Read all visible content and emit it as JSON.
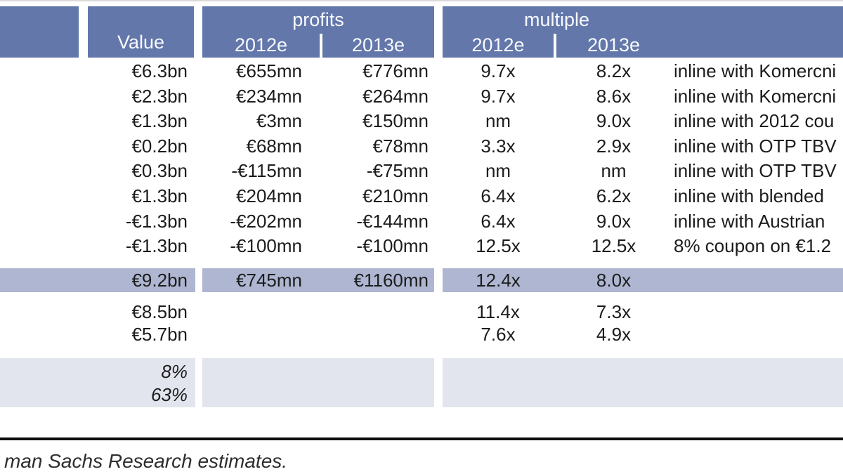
{
  "colors": {
    "header_blue": "#6377AB",
    "highlight_row_blue": "#AEB6D1",
    "shaded_section_gray": "#E2E5ED",
    "header_text": "#F7F9FC",
    "body_text": "#1C1C1C"
  },
  "header": {
    "group_profits": "profits",
    "group_multiple": "multiple",
    "value": "Value",
    "profits_2012": "2012e",
    "profits_2013": "2013e",
    "multiple_2012": "2012e",
    "multiple_2013": "2013e"
  },
  "table": {
    "rows": [
      {
        "value": "€6.3bn",
        "profits_2012": "€655mn",
        "profits_2013": "€776mn",
        "multiple_2012": "9.7x",
        "multiple_2013": "8.2x",
        "comment": "inline with Komercni"
      },
      {
        "value": "€2.3bn",
        "profits_2012": "€234mn",
        "profits_2013": "€264mn",
        "multiple_2012": "9.7x",
        "multiple_2013": "8.6x",
        "comment": "inline with Komercni"
      },
      {
        "value": "€1.3bn",
        "profits_2012": "€3mn",
        "profits_2013": "€150mn",
        "multiple_2012": "nm",
        "multiple_2013": "9.0x",
        "comment": "inline with 2012 cou"
      },
      {
        "value": "€0.2bn",
        "profits_2012": "€68mn",
        "profits_2013": "€78mn",
        "multiple_2012": "3.3x",
        "multiple_2013": "2.9x",
        "comment": "inline with OTP TBV"
      },
      {
        "value": "€0.3bn",
        "profits_2012": "-€115mn",
        "profits_2013": "-€75mn",
        "multiple_2012": "nm",
        "multiple_2013": "nm",
        "comment": "inline with OTP TBV"
      },
      {
        "value": "€1.3bn",
        "profits_2012": "€204mn",
        "profits_2013": "€210mn",
        "multiple_2012": "6.4x",
        "multiple_2013": "6.2x",
        "comment": "inline with blended"
      },
      {
        "value": "-€1.3bn",
        "profits_2012": "-€202mn",
        "profits_2013": "-€144mn",
        "multiple_2012": "6.4x",
        "multiple_2013": "9.0x",
        "comment": "inline with Austrian"
      },
      {
        "value": "-€1.3bn",
        "profits_2012": "-€100mn",
        "profits_2013": "-€100mn",
        "multiple_2012": "12.5x",
        "multiple_2013": "12.5x",
        "comment": "8% coupon on €1.2"
      }
    ],
    "total_row": {
      "value": "€9.2bn",
      "profits_2012": "€745mn",
      "profits_2013": "€1160mn",
      "multiple_2012": "12.4x",
      "multiple_2013": "8.0x",
      "comment": ""
    },
    "extra_rows": [
      {
        "value": "€8.5bn",
        "profits_2012": "",
        "profits_2013": "",
        "multiple_2012": "11.4x",
        "multiple_2013": "7.3x",
        "comment": ""
      },
      {
        "value": "€5.7bn",
        "profits_2012": "",
        "profits_2013": "",
        "multiple_2012": "7.6x",
        "multiple_2013": "4.9x",
        "comment": ""
      }
    ],
    "pct_rows": [
      "8%",
      "63%"
    ]
  },
  "footer": {
    "source_text": "man Sachs Research estimates."
  }
}
